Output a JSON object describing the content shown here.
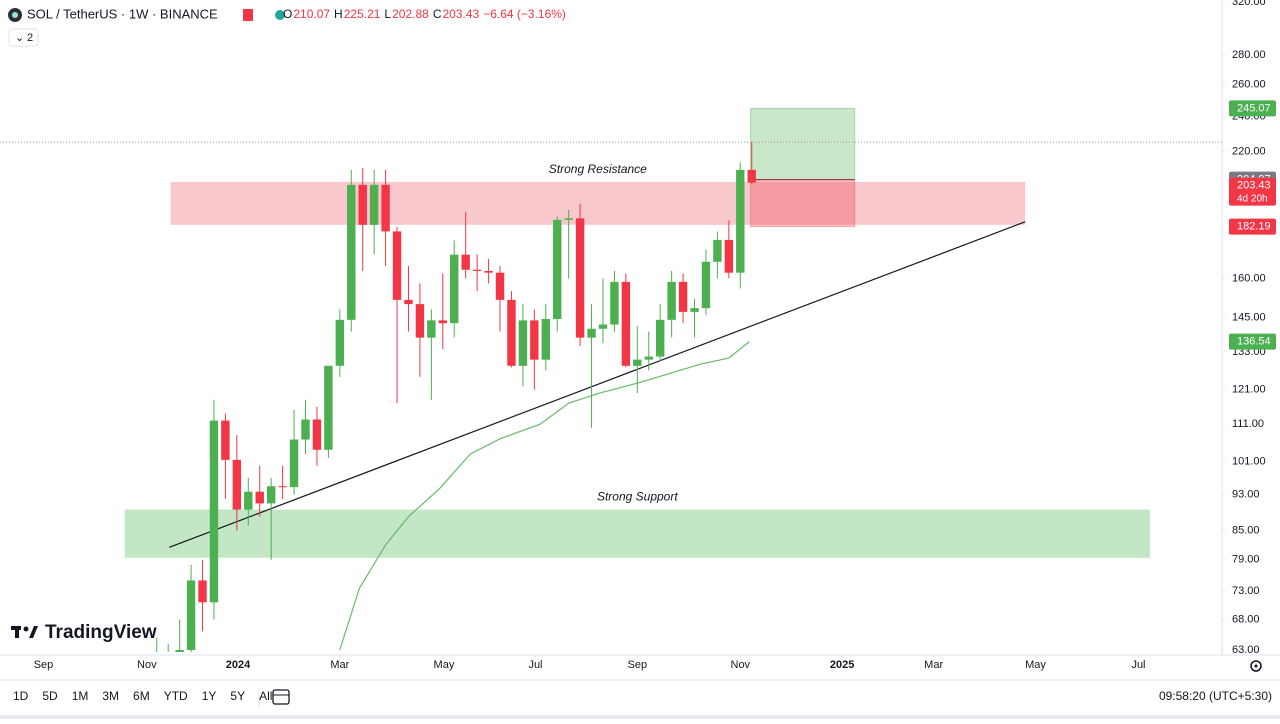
{
  "chart_data": {
    "type": "candlestick",
    "title": "SOL / TetherUS · 1W · BINANCE",
    "ohlc_letters": [
      "O",
      "H",
      "L",
      "C"
    ],
    "change": "−6.64 (−3.16%)",
    "indicator_count": "2",
    "logo": "TradingView",
    "up_color": "#4caf50",
    "down_color": "#f23645",
    "log_scale": true,
    "x": [
      0,
      1,
      2,
      3,
      4,
      5,
      6,
      7,
      8,
      9,
      10,
      11,
      12,
      13,
      14,
      15,
      16,
      17,
      18,
      19,
      20,
      21,
      22,
      23,
      24,
      25,
      26,
      27,
      28,
      29,
      30,
      31,
      32,
      33,
      34,
      35,
      36,
      37,
      38,
      39,
      40,
      41,
      42,
      43,
      44,
      45,
      46,
      47,
      48,
      49,
      50,
      51,
      52
    ],
    "open": [
      58,
      59,
      62,
      63,
      75,
      71,
      112,
      101.5,
      89.6,
      93.7,
      91,
      95,
      94.8,
      106.8,
      112.3,
      104.1,
      128.5,
      144.2,
      202.3,
      183,
      202.3,
      180,
      151.6,
      150,
      137.9,
      144,
      143,
      169.8,
      163.5,
      163,
      162.3,
      151.6,
      128.5,
      144,
      130.5,
      144.5,
      185.3,
      186,
      137.9,
      141,
      142.5,
      158.6,
      128.5,
      130.5,
      131.5,
      144.2,
      158.6,
      147.1,
      148.5,
      166.8,
      176.2,
      162.3,
      210.07
    ],
    "high": [
      65,
      64,
      68,
      78,
      79,
      118,
      114,
      108,
      97,
      100,
      97,
      100,
      115,
      118,
      116,
      128,
      148,
      210,
      211,
      210,
      210,
      182,
      165,
      158,
      148,
      162,
      176,
      189,
      170,
      168,
      165,
      155,
      150,
      148,
      150,
      187,
      190,
      193,
      150,
      160,
      163,
      162,
      142,
      140,
      150,
      163,
      162,
      152,
      172,
      180,
      185,
      214,
      225.21
    ],
    "low": [
      56,
      57,
      60,
      60,
      66,
      68,
      92,
      85,
      86,
      88,
      79,
      92,
      93,
      103,
      100,
      102,
      125,
      140,
      163,
      170,
      165,
      117,
      140,
      125,
      118,
      134,
      138,
      160,
      155,
      158,
      140,
      128,
      122,
      121,
      127,
      140,
      160,
      135,
      110,
      136,
      140,
      128,
      120,
      127,
      130,
      138,
      143,
      138,
      146,
      160,
      160,
      156,
      202.88
    ],
    "close": [
      60,
      62,
      63,
      75,
      71,
      112,
      101.5,
      89.6,
      93.7,
      91,
      95,
      94.8,
      106.8,
      112.3,
      104.1,
      128.5,
      144.2,
      202.3,
      183,
      202.3,
      180,
      151.6,
      150,
      137.9,
      144,
      143,
      169.8,
      163.5,
      163,
      162.3,
      151.6,
      128.5,
      144,
      130.5,
      144.5,
      185.3,
      186,
      137.9,
      141,
      142.5,
      158.6,
      128.5,
      130.5,
      131.5,
      144.2,
      158.6,
      147.1,
      148.5,
      166.8,
      176.2,
      162.3,
      210,
      203.43
    ],
    "ma": {
      "color": "#66bb6a",
      "x": [
        16,
        17.7,
        20,
        22,
        24.7,
        27.4,
        30,
        33.5,
        36,
        38.7,
        42,
        44.8,
        47.5,
        50,
        51.8
      ],
      "values": [
        63,
        73.5,
        82,
        88,
        94.4,
        103,
        107,
        111,
        117,
        120,
        123,
        126,
        129,
        131,
        136.54
      ]
    },
    "trendline": {
      "x": [
        1.1,
        75.9
      ],
      "values": [
        81.5,
        184.4
      ]
    },
    "zones": [
      {
        "label": "Strong Resistance",
        "x": [
          1.2,
          75.9
        ],
        "values": [
          183,
          203.8
        ],
        "color": "#f8c8cc"
      },
      {
        "label": "Strong Support",
        "x": [
          -2.8,
          86.8
        ],
        "values": [
          79.4,
          89.6
        ],
        "color": "#c3e6c5"
      }
    ],
    "position": {
      "x": [
        51.9,
        61
      ],
      "target": 245.07,
      "entry": 204.97,
      "stop": 182.19
    },
    "countdown": "4d 20h",
    "xlim": [
      -13.7,
      93.1
    ],
    "xticks": [
      {
        "value": -9.9,
        "label": "Sep"
      },
      {
        "value": -0.87,
        "label": "Nov"
      },
      {
        "value": 7.1,
        "label": "2024"
      },
      {
        "value": 16,
        "label": "Mar"
      },
      {
        "value": 25.1,
        "label": "May"
      },
      {
        "value": 33.1,
        "label": "Jul"
      },
      {
        "value": 42,
        "label": "Sep"
      },
      {
        "value": 51,
        "label": "Nov"
      },
      {
        "value": 59.9,
        "label": "2025"
      },
      {
        "value": 67.9,
        "label": "Mar"
      },
      {
        "value": 76.8,
        "label": "May"
      },
      {
        "value": 85.8,
        "label": "Jul"
      }
    ],
    "ylim": [
      63,
      320
    ],
    "yticks": [
      {
        "value": 320,
        "label": "320.00"
      },
      {
        "value": 280,
        "label": "280.00"
      },
      {
        "value": 260,
        "label": "260.00"
      },
      {
        "value": 240,
        "label": "240.00"
      },
      {
        "value": 220,
        "label": "220.00"
      },
      {
        "value": 160,
        "label": "160.00"
      },
      {
        "value": 145,
        "label": "145.00"
      },
      {
        "value": 133,
        "label": "133.00"
      },
      {
        "value": 121,
        "label": "121.00"
      },
      {
        "value": 111,
        "label": "111.00"
      },
      {
        "value": 101,
        "label": "101.00"
      },
      {
        "value": 93,
        "label": "93.00"
      },
      {
        "value": 85,
        "label": "85.00"
      },
      {
        "value": 79,
        "label": "79.00"
      },
      {
        "value": 73,
        "label": "73.00"
      },
      {
        "value": 68,
        "label": "68.00"
      },
      {
        "value": 63,
        "label": "63.00"
      }
    ]
  },
  "toolbar": {
    "ranges": [
      "1D",
      "5D",
      "1M",
      "3M",
      "6M",
      "YTD",
      "1Y",
      "5Y",
      "All"
    ],
    "clock": "09:58:20 (UTC+5:30)"
  }
}
